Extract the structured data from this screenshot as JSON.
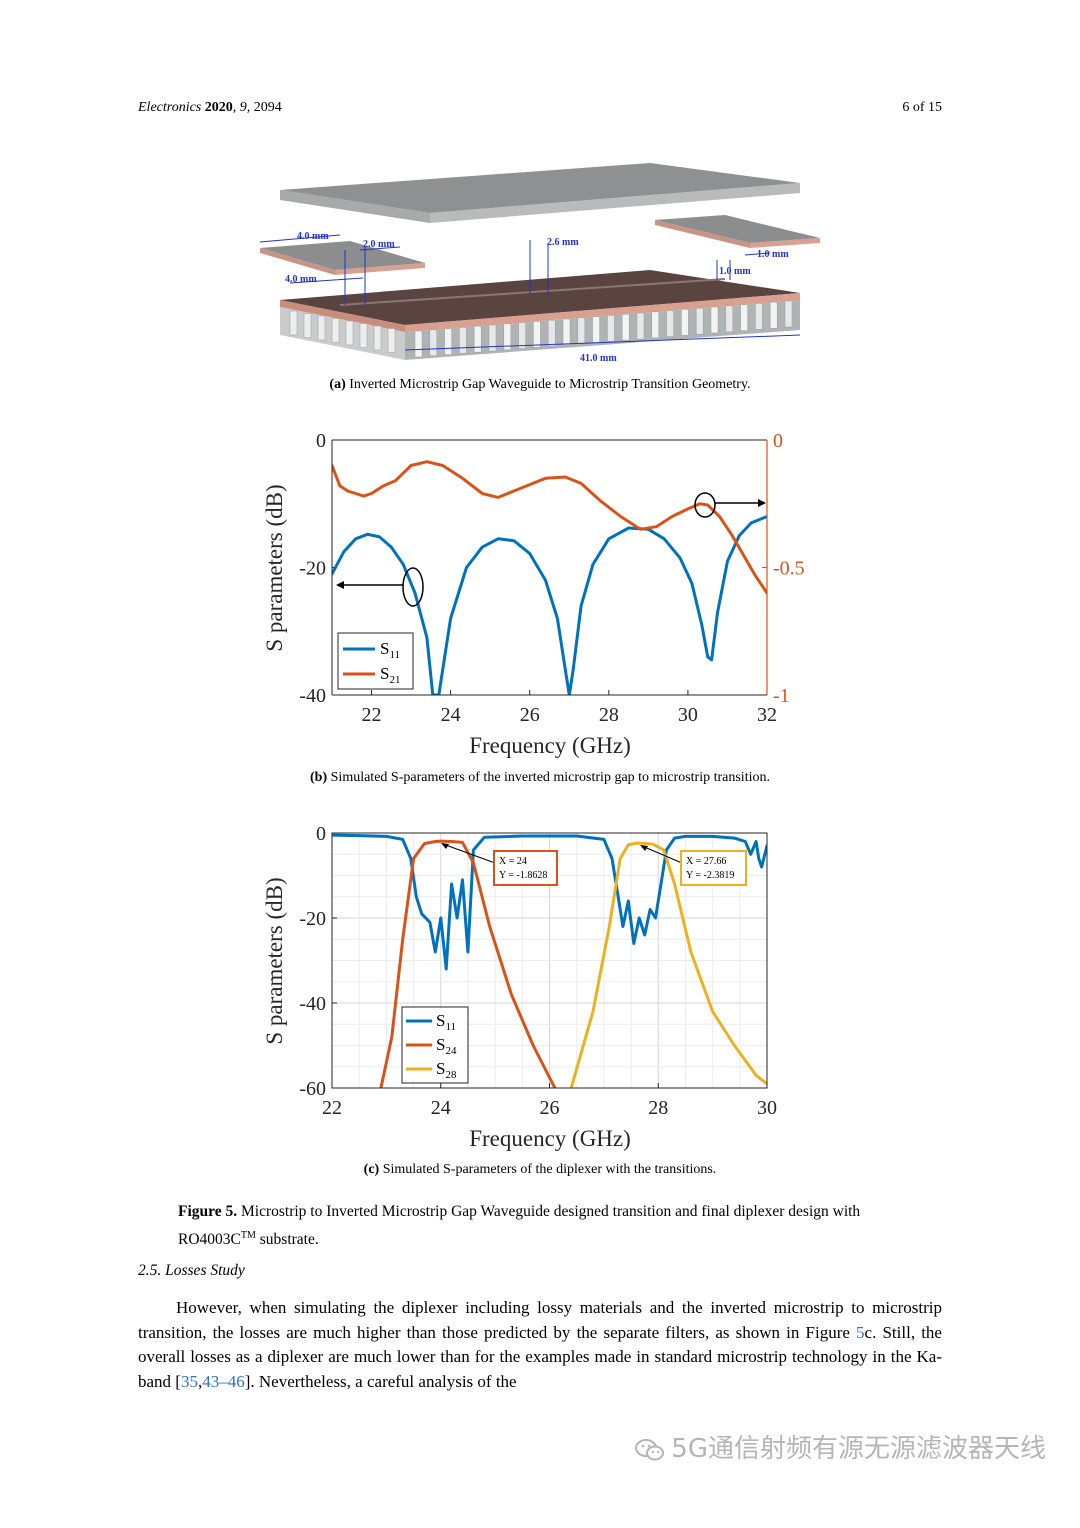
{
  "header": {
    "journal": "Electronics",
    "year": "2020",
    "volume": "9",
    "article": "2094",
    "page": "6 of 15"
  },
  "figure_a": {
    "caption_label": "(a)",
    "caption": "Inverted Microstrip Gap Waveguide to Microstrip Transition Geometry.",
    "dimensions": [
      "4.0 mm",
      "2.0 mm",
      "4.0 mm",
      "2.6 mm",
      "1.0 mm",
      "1.0 mm",
      "41.0 mm"
    ]
  },
  "figure_b": {
    "caption_label": "(b)",
    "caption": "Simulated S-parameters of the inverted microstrip gap to microstrip transition."
  },
  "figure_c": {
    "caption_label": "(c)",
    "caption": "Simulated S-parameters of the diplexer with the transitions.",
    "datatips": [
      {
        "x_text": "X = 24",
        "y_text": "Y = -1.8628"
      },
      {
        "x_text": "X = 27.66",
        "y_text": "Y = -2.3819"
      }
    ]
  },
  "figure": {
    "label": "Figure 5.",
    "text": "Microstrip to Inverted Microstrip Gap Waveguide designed transition and final diplexer design with RO4003C",
    "superscript": "TM",
    "text_end": " substrate."
  },
  "section": {
    "title": "2.5. Losses Study"
  },
  "paragraph": {
    "part1": "However, when simulating the diplexer including lossy materials and the inverted microstrip to microstrip transition, the losses are much higher than those predicted by the separate filters, as shown in Figure ",
    "ref_fig": "5",
    "part2": "c.  Still, the overall losses as a diplexer are much lower than for the examples made in standard microstrip technology in the Ka-band [",
    "ref1": "35",
    "sep": ",",
    "ref2": "43–46",
    "part3": "].  Nevertheless, a careful analysis of the"
  },
  "watermark": {
    "text": "5G通信射频有源无源滤波器天线"
  },
  "colors": {
    "s11": "#0072BD",
    "s21": "#D95319",
    "s24": "#D95319",
    "s28": "#EDB120",
    "right_axis": "#D95319"
  },
  "chart_data": [
    {
      "type": "line",
      "xlabel": "Frequency (GHz)",
      "ylabel": "S parameters (dB)",
      "xlim": [
        21,
        32
      ],
      "ylim": [
        -40,
        0
      ],
      "xticks": [
        "22",
        "24",
        "26",
        "28",
        "30",
        "32"
      ],
      "yticks": [
        "0",
        "-20",
        "-40"
      ],
      "y2lim": [
        -1,
        0
      ],
      "y2ticks": [
        "0",
        "-0.5",
        "-1"
      ],
      "legend_position": "bottom-left",
      "series": [
        {
          "name": "S11",
          "axis": "left",
          "color": "#0072BD",
          "x": [
            21,
            21.3,
            21.6,
            21.9,
            22.2,
            22.5,
            22.8,
            23.1,
            23.4,
            23.55,
            23.7,
            24.0,
            24.4,
            24.8,
            25.2,
            25.6,
            26.0,
            26.4,
            26.7,
            26.9,
            27.0,
            27.1,
            27.3,
            27.6,
            28.0,
            28.5,
            29.0,
            29.4,
            29.8,
            30.1,
            30.35,
            30.5,
            30.6,
            30.75,
            31.0,
            31.3,
            31.6,
            32
          ],
          "y": [
            -21,
            -17.5,
            -15.5,
            -14.8,
            -15.2,
            -16.8,
            -19.5,
            -24,
            -31,
            -40,
            -40,
            -28,
            -20,
            -16.8,
            -15.5,
            -15.8,
            -17.8,
            -22,
            -28,
            -36,
            -40,
            -36,
            -26,
            -19.5,
            -15.5,
            -13.8,
            -14,
            -15.5,
            -18.5,
            -22.5,
            -29,
            -34,
            -34.5,
            -27,
            -19,
            -15,
            -13,
            -12
          ]
        },
        {
          "name": "S21",
          "axis": "right",
          "color": "#D95319",
          "x": [
            21,
            21.2,
            21.4,
            21.6,
            21.8,
            22.0,
            22.3,
            22.6,
            23.0,
            23.4,
            23.8,
            24.3,
            24.8,
            25.2,
            25.6,
            26.0,
            26.4,
            26.9,
            27.3,
            27.8,
            28.3,
            28.8,
            29.2,
            29.6,
            30.0,
            30.3,
            30.5,
            30.8,
            31.1,
            31.4,
            31.7,
            32
          ],
          "y": [
            -0.1,
            -0.18,
            -0.2,
            -0.21,
            -0.22,
            -0.21,
            -0.18,
            -0.16,
            -0.1,
            -0.085,
            -0.1,
            -0.15,
            -0.21,
            -0.225,
            -0.2,
            -0.175,
            -0.15,
            -0.145,
            -0.17,
            -0.24,
            -0.3,
            -0.35,
            -0.34,
            -0.3,
            -0.27,
            -0.25,
            -0.255,
            -0.3,
            -0.37,
            -0.45,
            -0.53,
            -0.6
          ]
        }
      ],
      "annotations": [
        "arrow-left-from-S11",
        "arrow-right-from-S21"
      ]
    },
    {
      "type": "line",
      "xlabel": "Frequency (GHz)",
      "ylabel": "S parameters (dB)",
      "xlim": [
        22,
        30
      ],
      "ylim": [
        -60,
        0
      ],
      "xticks": [
        "22",
        "24",
        "26",
        "28",
        "30"
      ],
      "yticks": [
        "0",
        "-20",
        "-40",
        "-60"
      ],
      "grid": true,
      "legend_position": "bottom-left",
      "series": [
        {
          "name": "S11",
          "color": "#0072BD",
          "x": [
            22,
            22.5,
            23.0,
            23.3,
            23.45,
            23.55,
            23.65,
            23.8,
            23.9,
            24.0,
            24.1,
            24.2,
            24.3,
            24.4,
            24.5,
            24.6,
            24.8,
            25.5,
            26.5,
            27.0,
            27.15,
            27.25,
            27.35,
            27.45,
            27.55,
            27.65,
            27.75,
            27.85,
            27.95,
            28.05,
            28.15,
            28.3,
            28.5,
            29.0,
            29.4,
            29.6,
            29.7,
            29.8,
            29.85,
            29.9,
            30.0
          ],
          "y": [
            -0.5,
            -0.6,
            -0.8,
            -1.5,
            -6,
            -15,
            -19,
            -21,
            -28,
            -20,
            -32,
            -12,
            -20,
            -11,
            -28,
            -4,
            -1,
            -0.7,
            -0.7,
            -1.5,
            -6,
            -14,
            -22,
            -16,
            -26,
            -20,
            -24,
            -18,
            -20,
            -12,
            -4,
            -1.2,
            -0.8,
            -0.8,
            -1.2,
            -2,
            -5,
            -2,
            -6,
            -8,
            -3
          ]
        },
        {
          "name": "S24",
          "color": "#D95319",
          "x": [
            22.9,
            23.1,
            23.3,
            23.5,
            23.7,
            23.9,
            24.0,
            24.2,
            24.4,
            24.6,
            24.9,
            25.3,
            25.7,
            26.1
          ],
          "y": [
            -60,
            -48,
            -25,
            -6,
            -2.5,
            -2,
            -1.9,
            -2,
            -2.2,
            -7,
            -22,
            -38,
            -50,
            -60
          ]
        },
        {
          "name": "S28",
          "color": "#EDB120",
          "x": [
            26.4,
            26.8,
            27.1,
            27.3,
            27.45,
            27.6,
            27.66,
            27.9,
            28.1,
            28.3,
            28.6,
            29.0,
            29.4,
            29.8,
            30.0
          ],
          "y": [
            -60,
            -42,
            -22,
            -6,
            -2.8,
            -2.4,
            -2.38,
            -2.6,
            -4,
            -12,
            -28,
            -42,
            -50,
            -57,
            -59
          ]
        }
      ],
      "datatips": [
        {
          "x": 24,
          "y": -1.8628
        },
        {
          "x": 27.66,
          "y": -2.3819
        }
      ]
    }
  ]
}
